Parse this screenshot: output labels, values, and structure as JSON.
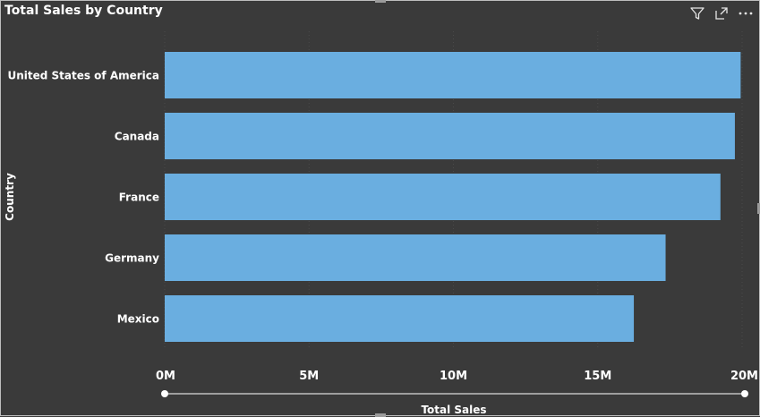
{
  "visual": {
    "title": "Total Sales by Country",
    "icons": [
      "filter-icon",
      "focus-mode-icon",
      "more-options-icon"
    ]
  },
  "colors": {
    "background": "#3a3a3a",
    "bar": "#6aaee0",
    "text": "#ffffff",
    "grid": "#4a4a4a",
    "slider": "#d9d9d9"
  },
  "chart_data": {
    "type": "bar",
    "orientation": "horizontal",
    "title": "Total Sales by Country",
    "xlabel": "Total Sales",
    "ylabel": "Country",
    "categories": [
      "United States of America",
      "Canada",
      "France",
      "Germany",
      "Mexico"
    ],
    "values": [
      19.95,
      19.75,
      19.25,
      17.35,
      16.25
    ],
    "xlim": [
      0,
      20
    ],
    "xticks": [
      0,
      5,
      10,
      15,
      20
    ],
    "xtick_labels": [
      "0M",
      "5M",
      "10M",
      "15M",
      "20M"
    ],
    "grid": true
  }
}
